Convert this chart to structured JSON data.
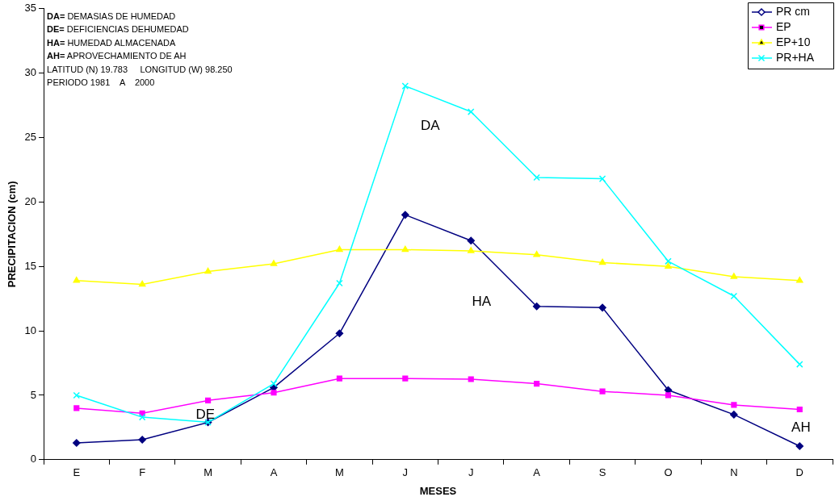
{
  "chart_data": {
    "type": "line",
    "xlabel": "MESES",
    "ylabel": "PRECIPITACION (cm)",
    "categories": [
      "E",
      "F",
      "M",
      "A",
      "M",
      "J",
      "J",
      "A",
      "S",
      "O",
      "N",
      "D"
    ],
    "ylim": [
      0,
      35
    ],
    "yticks": [
      0,
      5,
      10,
      15,
      20,
      25,
      30,
      35
    ],
    "legend": "top right",
    "series": [
      {
        "name": "PR cm",
        "color": "#000080",
        "marker": "diamond",
        "values": [
          1.3,
          1.55,
          2.9,
          5.6,
          9.8,
          19.0,
          17.0,
          11.9,
          11.8,
          5.4,
          3.5,
          1.05
        ]
      },
      {
        "name": "EP",
        "color": "#ff00ff",
        "marker": "square",
        "values": [
          4.0,
          3.6,
          4.6,
          5.2,
          6.3,
          6.3,
          6.25,
          5.9,
          5.3,
          5.0,
          4.25,
          3.9
        ]
      },
      {
        "name": "EP+10",
        "color": "#ffff00",
        "marker": "triangle",
        "values": [
          13.9,
          13.6,
          14.6,
          15.2,
          16.3,
          16.3,
          16.2,
          15.9,
          15.3,
          15.0,
          14.2,
          13.9
        ]
      },
      {
        "name": "PR+HA",
        "color": "#00ffff",
        "marker": "cross",
        "values": [
          5.0,
          3.3,
          2.9,
          5.9,
          13.7,
          29.0,
          27.0,
          21.9,
          21.8,
          15.4,
          12.7,
          7.4
        ]
      }
    ],
    "annotations": [
      "DA= DEMASIAS DE HUMEDAD",
      "DE= DEFICIENCIAS DEHUMEDAD",
      "HA= HUMEDAD ALMACENADA",
      "AH= APROVECHAMIENTO DE AH",
      "LATITUD (N) 19.783     LONGITUD (W) 98.250",
      "PERIODO 1981    A    2000",
      "DA",
      "HA",
      "DE",
      "AH"
    ]
  }
}
